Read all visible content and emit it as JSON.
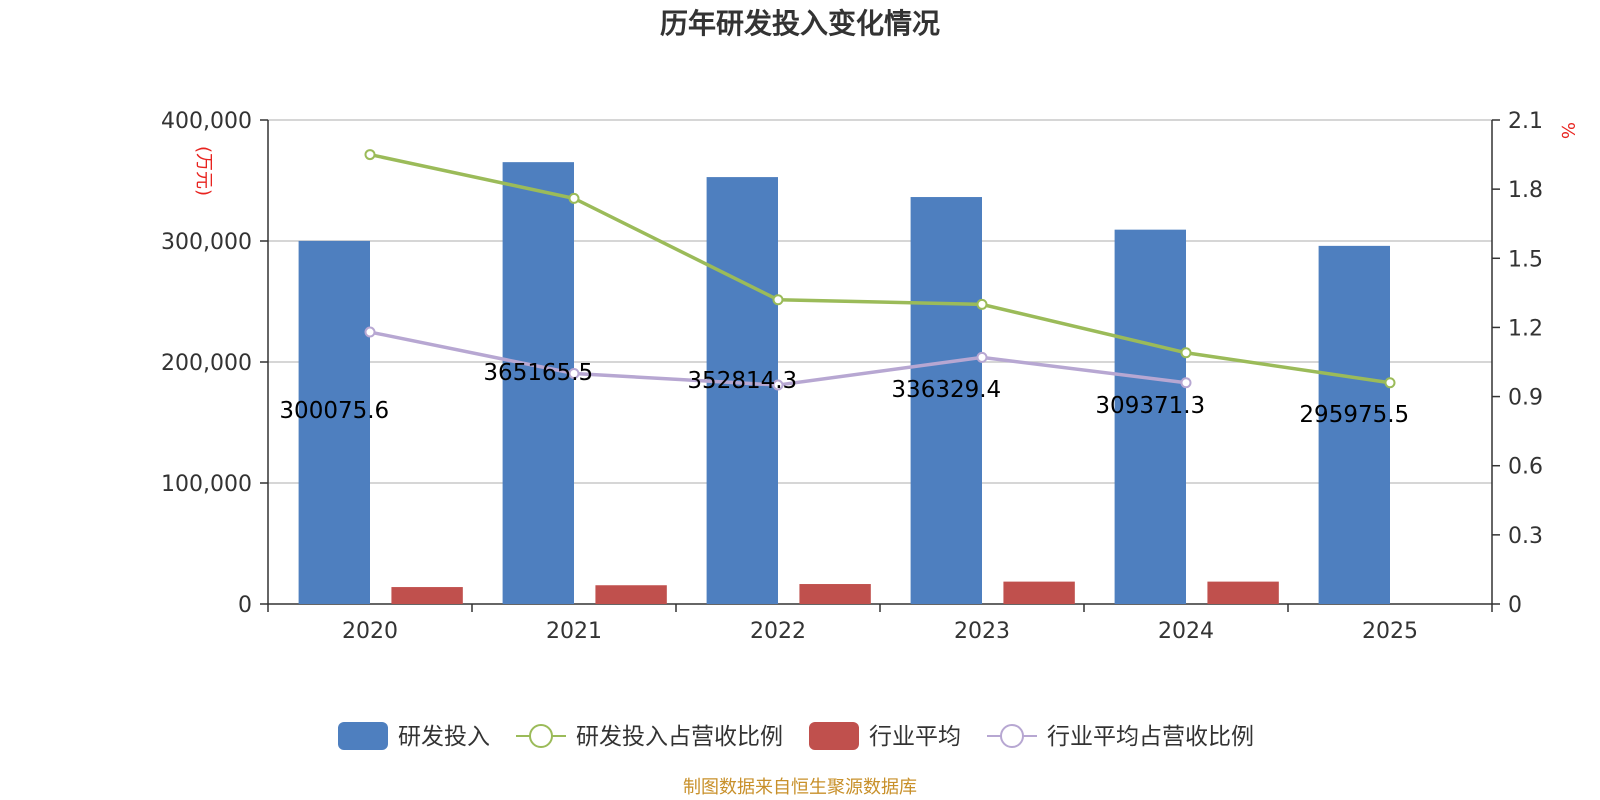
{
  "chart_data": {
    "type": "bar",
    "title": "历年研发投入变化情况",
    "categories": [
      "2020",
      "2021",
      "2022",
      "2023",
      "2024",
      "2025"
    ],
    "y_left": {
      "unit": "万元",
      "ylim": [
        0,
        400000
      ],
      "ticks": [
        "0",
        "100,000",
        "200,000",
        "300,000",
        "400,000"
      ]
    },
    "y_right": {
      "unit": "%",
      "ylim": [
        0,
        2.1
      ],
      "ticks": [
        "0",
        "0.3",
        "0.6",
        "0.9",
        "1.2",
        "1.5",
        "1.8",
        "2.1"
      ]
    },
    "grid": true,
    "legend_position": "bottom",
    "series": [
      {
        "name": "研发投入",
        "kind": "bar",
        "axis": "left",
        "color": "#4e7fbf",
        "values": [
          300075.6,
          365165.5,
          352814.3,
          336329.4,
          309371.3,
          295975.5
        ],
        "labels": [
          "300075.6",
          "365165.5",
          "352814.3",
          "336329.4",
          "309371.3",
          "295975.5"
        ]
      },
      {
        "name": "研发投入占营收比例",
        "kind": "line",
        "axis": "right",
        "color": "#9bbb59",
        "values": [
          1.95,
          1.76,
          1.32,
          1.3,
          1.09,
          0.96
        ]
      },
      {
        "name": "行业平均",
        "kind": "bar",
        "axis": "left",
        "color": "#c0504d",
        "values": [
          14000,
          15500,
          16500,
          18500,
          18500,
          null
        ]
      },
      {
        "name": "行业平均占营收比例",
        "kind": "line",
        "axis": "right",
        "color": "#b7a7d2",
        "values": [
          1.18,
          1.0,
          0.95,
          1.07,
          0.96,
          null
        ]
      }
    ],
    "source": "制图数据来自恒生聚源数据库"
  }
}
